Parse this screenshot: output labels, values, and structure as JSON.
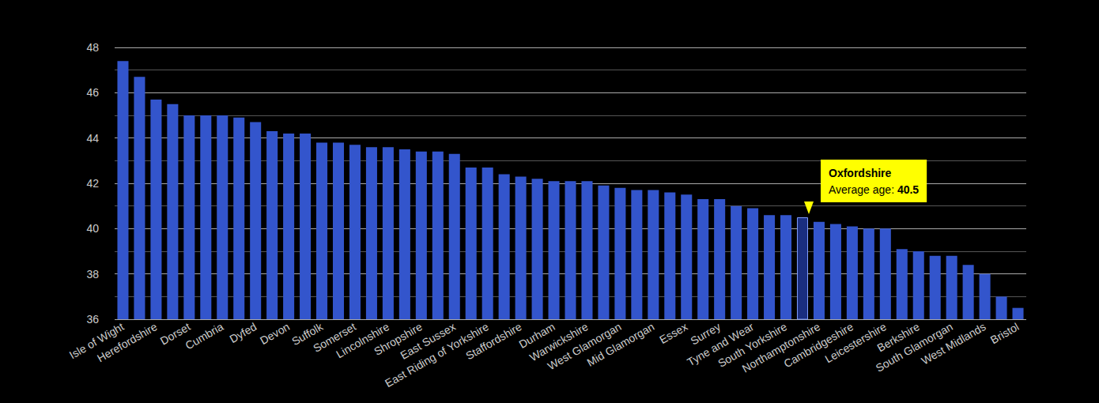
{
  "chart_data": {
    "type": "bar",
    "categories": [
      "Isle of Wight",
      null,
      "Herefordshire",
      null,
      "Dorset",
      null,
      "Cumbria",
      null,
      "Dyfed",
      null,
      "Devon",
      null,
      "Suffolk",
      null,
      "Somerset",
      null,
      "Lincolnshire",
      null,
      "Shropshire",
      null,
      "East Sussex",
      null,
      "East Riding of Yorkshire",
      null,
      "Staffordshire",
      null,
      "Durham",
      null,
      "Warwickshire",
      null,
      "West Glamorgan",
      null,
      "Mid Glamorgan",
      null,
      "Essex",
      null,
      "Surrey",
      null,
      "Tyne and Wear",
      null,
      "South Yorkshire",
      null,
      "Northamptonshire",
      null,
      "Cambridgeshire",
      null,
      "Leicestershire",
      null,
      "Berkshire",
      null,
      "South Glamorgan",
      null,
      "West Midlands",
      null,
      "Bristol"
    ],
    "values": [
      47.4,
      46.7,
      45.7,
      45.5,
      45.0,
      45.0,
      45.0,
      44.9,
      44.7,
      44.3,
      44.2,
      44.2,
      43.8,
      43.8,
      43.7,
      43.6,
      43.6,
      43.5,
      43.4,
      43.4,
      43.3,
      42.7,
      42.7,
      42.4,
      42.3,
      42.2,
      42.1,
      42.1,
      42.1,
      41.9,
      41.8,
      41.7,
      41.7,
      41.6,
      41.5,
      41.3,
      41.3,
      41.0,
      40.9,
      40.6,
      40.6,
      40.5,
      40.3,
      40.2,
      40.1,
      40.0,
      40.0,
      39.1,
      39.0,
      38.8,
      38.8,
      38.4,
      38.0,
      37.0,
      36.5
    ],
    "color": "#3355cc",
    "ylim": [
      36,
      48
    ],
    "yticks": [
      36,
      38,
      40,
      42,
      44,
      46,
      48
    ],
    "grid": true,
    "annotation": {
      "title": "Oxfordshire",
      "label": "Average age:",
      "value": 40.5
    }
  }
}
